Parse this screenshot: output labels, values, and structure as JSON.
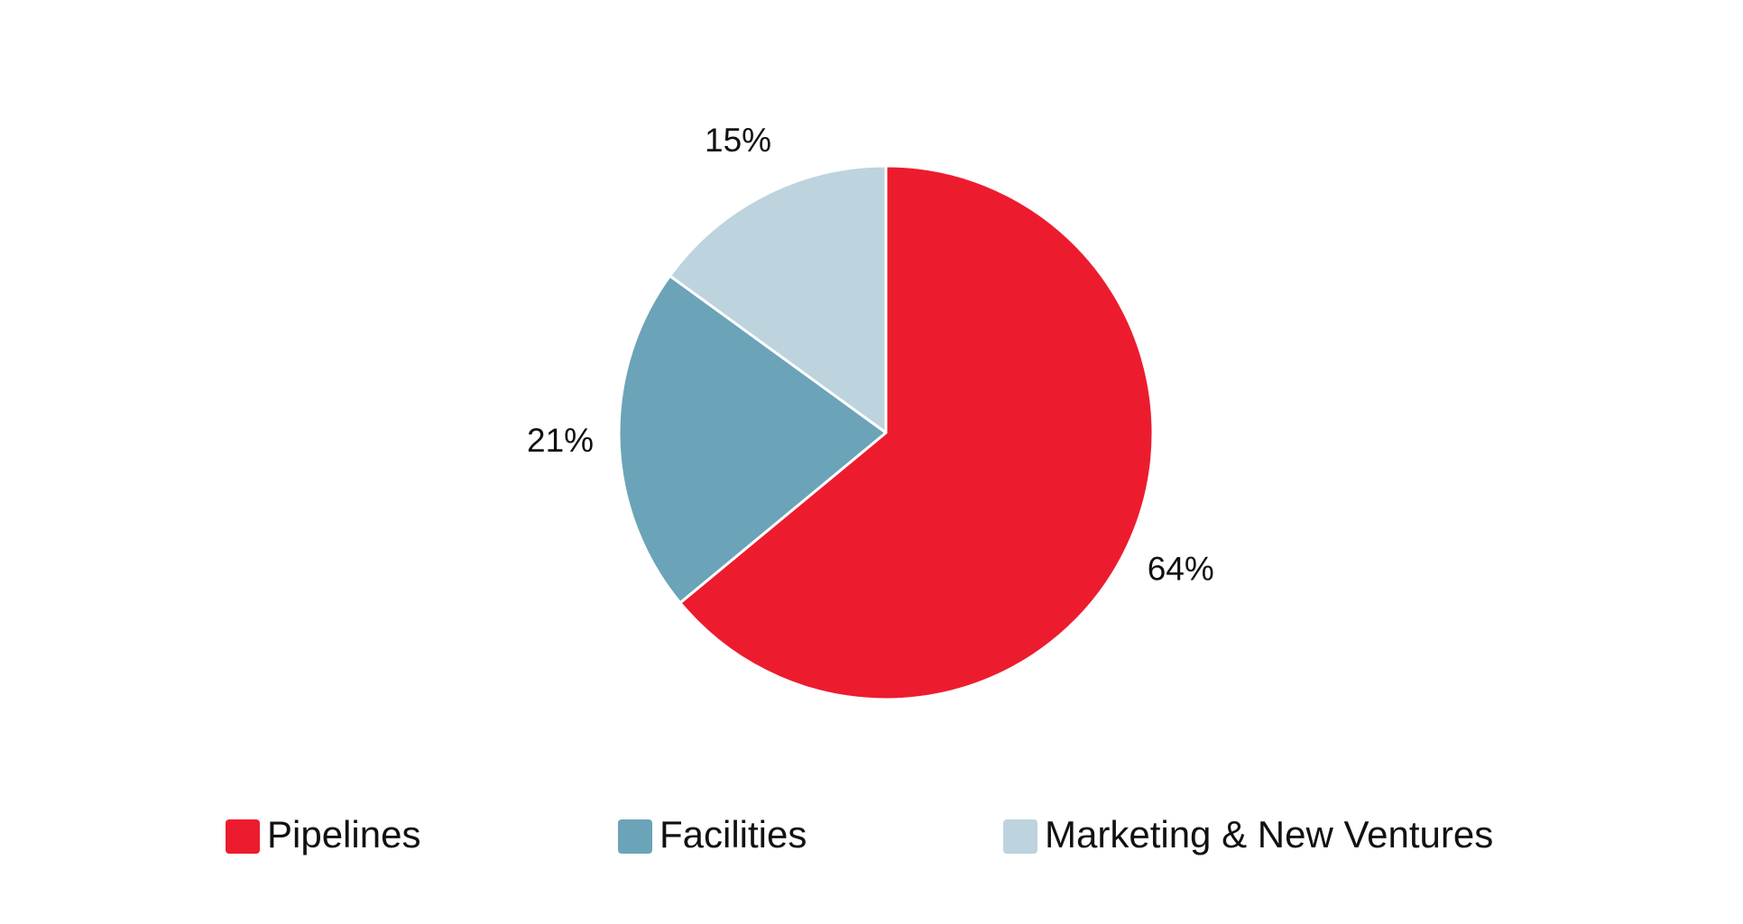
{
  "chart_data": {
    "type": "pie",
    "categories": [
      "Pipelines",
      "Facilities",
      "Marketing & New Ventures"
    ],
    "values": [
      64,
      21,
      15
    ],
    "value_labels": [
      "64%",
      "21%",
      "15%"
    ],
    "colors": [
      "#ec1c2e",
      "#6ba3b8",
      "#bdd3de"
    ],
    "legend": "bottom"
  }
}
